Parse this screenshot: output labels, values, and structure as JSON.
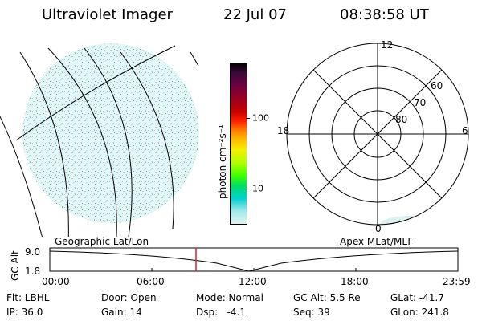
{
  "header": {
    "title": "Ultraviolet Imager",
    "date": "22 Jul 07",
    "time": "08:38:58 UT"
  },
  "colorbar": {
    "label": "photon cm⁻²s⁻¹",
    "tick_labels": [
      "100",
      "10"
    ],
    "colors": [
      "#000000",
      "#3a0a3a",
      "#6e0040",
      "#9a0020",
      "#c80000",
      "#ff2000",
      "#ff8000",
      "#ffc000",
      "#f5f000",
      "#b0ff00",
      "#40ff00",
      "#00e060",
      "#00d0d0",
      "#a0e8e8",
      "#e0f4f4"
    ]
  },
  "polar_plot": {
    "mlt_labels": {
      "top": "12",
      "left": "18",
      "right": "6",
      "bottom": "0"
    },
    "lat_labels": [
      "60",
      "70",
      "80"
    ]
  },
  "timeline": {
    "left_label": "Geographic Lat/Lon",
    "right_label": "Apex MLat/MLT",
    "y_axis_title": "GC Alt",
    "y_ticks": [
      "9.0",
      "1.8"
    ],
    "x_ticks": [
      "00:00",
      "06:00",
      "12:00",
      "18:00",
      "23:59"
    ]
  },
  "info": {
    "filter": "Flt: LBHL",
    "ip": "IP: 36.0",
    "door": "Door: Open",
    "gain": "Gain: 14",
    "mode": "Mode: Normal",
    "dsp": "Dsp:   -4.1",
    "gc_alt": "GC Alt: 5.5 Re",
    "seq": "Seq: 39",
    "glat": "GLat: -41.7",
    "glon": "GLon: 241.8"
  }
}
